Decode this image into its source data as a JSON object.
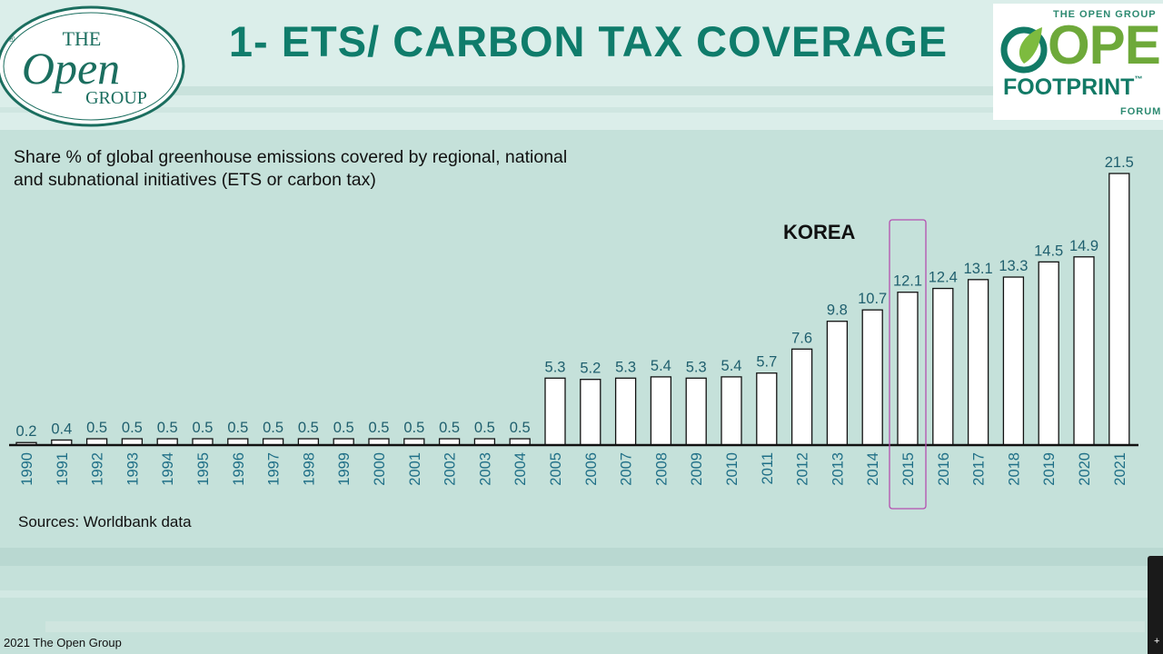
{
  "header": {
    "title": "1- ETS/ CARBON TAX COVERAGE",
    "left_logo": {
      "line1": "THE",
      "line2": "Open",
      "line3": "GROUP",
      "reg": "®"
    },
    "right_logo": {
      "top": "THE OPEN GROUP",
      "open": "OPEN",
      "footprint": "FOOTPRINT",
      "tm": "™",
      "forum": "FORUM"
    }
  },
  "colors": {
    "title": "#0f7c6b",
    "bar_fill": "#ffffff",
    "bar_stroke": "#111111",
    "value_label": "#1f5f6e",
    "year_label": "#1f6f87",
    "highlight": "#b44fb0"
  },
  "chart_data": {
    "type": "bar",
    "title": "Share % of global greenhouse emissions covered by regional, national and subnational initiatives (ETS or carbon tax)",
    "categories": [
      "1990",
      "1991",
      "1992",
      "1993",
      "1994",
      "1995",
      "1996",
      "1997",
      "1998",
      "1999",
      "2000",
      "2001",
      "2002",
      "2003",
      "2004",
      "2005",
      "2006",
      "2007",
      "2008",
      "2009",
      "2010",
      "2011",
      "2012",
      "2013",
      "2014",
      "2015",
      "2016",
      "2017",
      "2018",
      "2019",
      "2020",
      "2021"
    ],
    "values": [
      0.2,
      0.4,
      0.5,
      0.5,
      0.5,
      0.5,
      0.5,
      0.5,
      0.5,
      0.5,
      0.5,
      0.5,
      0.5,
      0.5,
      0.5,
      5.3,
      5.2,
      5.3,
      5.4,
      5.3,
      5.4,
      5.7,
      7.6,
      9.8,
      10.7,
      12.1,
      12.4,
      13.1,
      13.3,
      14.5,
      14.9,
      21.5
    ],
    "ylim": [
      0,
      21.5
    ],
    "xlabel": "",
    "ylabel": "",
    "grid": false,
    "highlight": {
      "category": "2015",
      "label": "KOREA"
    },
    "source": "Sources: Worldbank data"
  },
  "footer": {
    "copyright": "2021 The Open Group"
  }
}
